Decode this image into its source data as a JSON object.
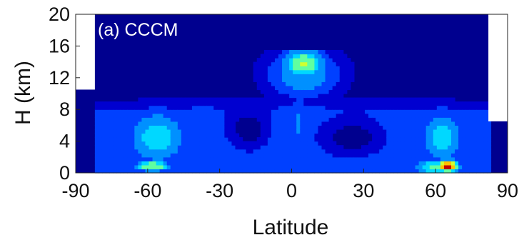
{
  "chart_data": {
    "type": "heatmap",
    "panel_label": "(a) CCCM",
    "xlabel": "Latitude",
    "ylabel": "H (km)",
    "xlim": [
      -90,
      90
    ],
    "ylim": [
      0,
      20
    ],
    "x_ticks": [
      "-90",
      "-60",
      "-30",
      "0",
      "30",
      "60",
      "90"
    ],
    "y_ticks": [
      "0",
      "4",
      "8",
      "12",
      "16",
      "20"
    ],
    "data_lat_range": [
      -82,
      82
    ],
    "colormap": [
      "#00008f",
      "#0000d0",
      "#0040ff",
      "#0090ff",
      "#00d8ff",
      "#60ffa0",
      "#d0ff30",
      "#ffc000",
      "#ff5000",
      "#c00000"
    ],
    "colors": {
      "background": "#00008f",
      "outside": "#ffffff"
    },
    "features": [
      {
        "name": "tropical-upper-maximum",
        "lat": 5,
        "height_km": 13.5,
        "level": 0.62
      },
      {
        "name": "northern-highlat-surface-max",
        "lat": 65,
        "height_km": 1.0,
        "level": 0.95
      },
      {
        "name": "southern-midlat-surface-max",
        "lat": -58,
        "height_km": 1.0,
        "level": 0.62
      },
      {
        "name": "southern-midlat-column",
        "lat": -55,
        "height_km": 5,
        "level": 0.45
      },
      {
        "name": "northern-midlat-column",
        "lat": 63,
        "height_km": 5,
        "level": 0.45
      }
    ]
  }
}
